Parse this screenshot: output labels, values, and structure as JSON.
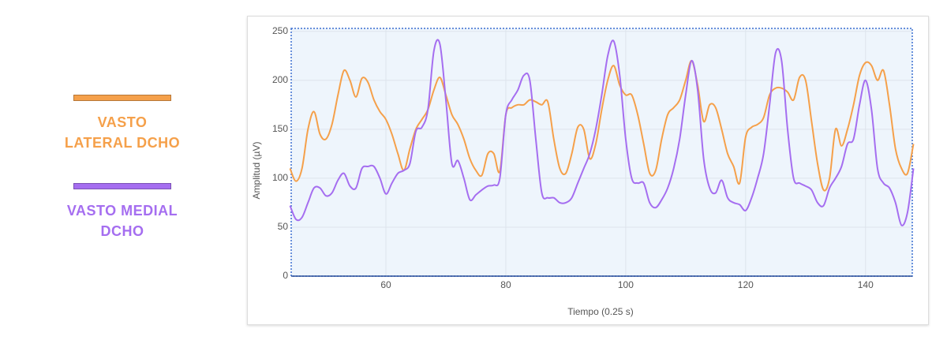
{
  "chart_data": {
    "type": "line",
    "x_label": "Tiempo (0.25 s)",
    "y_label": "Amplitud (µV)",
    "xlim": [
      44.2,
      147.8
    ],
    "ylim": [
      0,
      253
    ],
    "xticks": [
      60,
      80,
      100,
      120,
      140
    ],
    "yticks": [
      0,
      50,
      100,
      150,
      200,
      250
    ],
    "grid": true,
    "x": [
      44,
      45,
      46,
      47,
      48,
      49,
      50,
      51,
      52,
      53,
      54,
      55,
      56,
      57,
      58,
      59,
      60,
      61,
      62,
      63,
      64,
      65,
      66,
      67,
      68,
      69,
      70,
      71,
      72,
      73,
      74,
      75,
      76,
      77,
      78,
      79,
      80,
      81,
      82,
      83,
      84,
      85,
      86,
      87,
      88,
      89,
      90,
      91,
      92,
      93,
      94,
      95,
      96,
      97,
      98,
      99,
      100,
      101,
      102,
      103,
      104,
      105,
      106,
      107,
      108,
      109,
      110,
      111,
      112,
      113,
      114,
      115,
      116,
      117,
      118,
      119,
      120,
      121,
      122,
      123,
      124,
      125,
      126,
      127,
      128,
      129,
      130,
      131,
      132,
      133,
      134,
      135,
      136,
      137,
      138,
      139,
      140,
      141,
      142,
      143,
      144,
      145,
      146,
      147,
      148
    ],
    "series": [
      {
        "name": "VASTO LATERAL DCHO",
        "color": "#f5a04a",
        "values": [
          110,
          97,
          110,
          150,
          168,
          145,
          140,
          155,
          185,
          210,
          200,
          183,
          202,
          198,
          180,
          168,
          160,
          145,
          125,
          108,
          130,
          150,
          160,
          170,
          190,
          203,
          185,
          165,
          155,
          140,
          120,
          108,
          103,
          125,
          125,
          107,
          165,
          172,
          175,
          175,
          180,
          178,
          175,
          178,
          140,
          110,
          105,
          125,
          152,
          150,
          120,
          135,
          170,
          200,
          215,
          195,
          185,
          185,
          165,
          135,
          105,
          108,
          140,
          165,
          172,
          180,
          200,
          220,
          195,
          158,
          175,
          172,
          150,
          125,
          112,
          95,
          142,
          152,
          155,
          162,
          185,
          192,
          192,
          188,
          180,
          203,
          200,
          158,
          115,
          88,
          100,
          150,
          133,
          150,
          175,
          205,
          218,
          215,
          200,
          210,
          175,
          130,
          110,
          105,
          135
        ]
      },
      {
        "name": "VASTO MEDIAL DCHO",
        "color": "#a56ef0",
        "values": [
          72,
          58,
          60,
          75,
          90,
          90,
          82,
          85,
          98,
          105,
          92,
          90,
          110,
          112,
          112,
          100,
          84,
          95,
          105,
          108,
          115,
          148,
          152,
          170,
          230,
          237,
          180,
          115,
          118,
          100,
          78,
          83,
          88,
          92,
          93,
          100,
          165,
          180,
          190,
          205,
          200,
          140,
          85,
          80,
          80,
          75,
          75,
          80,
          95,
          110,
          125,
          150,
          185,
          225,
          240,
          205,
          140,
          100,
          95,
          95,
          75,
          70,
          78,
          90,
          110,
          140,
          185,
          220,
          190,
          120,
          90,
          85,
          98,
          80,
          75,
          73,
          67,
          80,
          100,
          125,
          175,
          228,
          220,
          150,
          100,
          95,
          92,
          88,
          75,
          72,
          90,
          100,
          112,
          135,
          140,
          175,
          200,
          170,
          110,
          95,
          90,
          75,
          52,
          65,
          110
        ]
      }
    ]
  }
}
